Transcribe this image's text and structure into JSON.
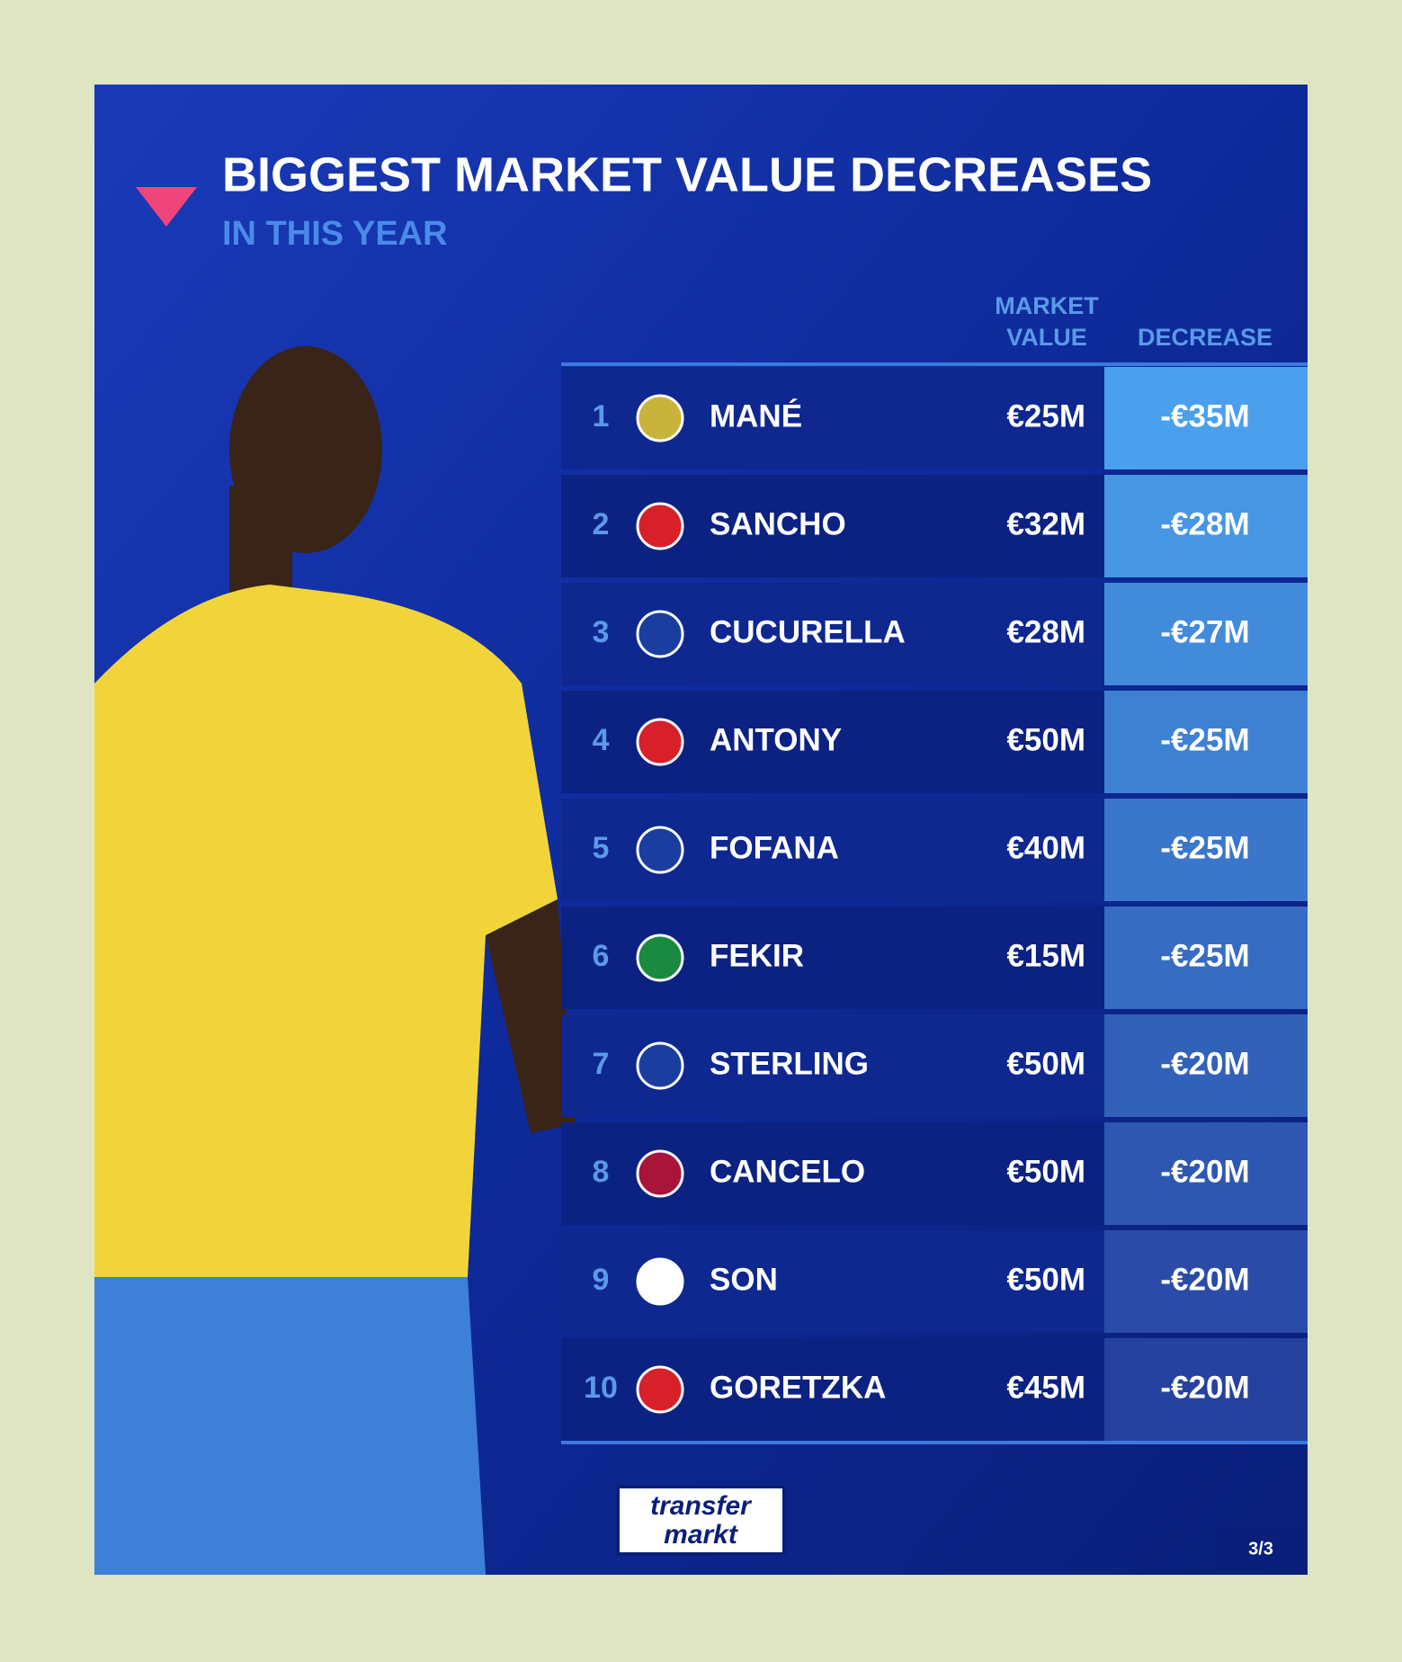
{
  "header": {
    "title": "BIGGEST MARKET VALUE DECREASES",
    "subtitle": "IN THIS YEAR"
  },
  "table": {
    "columns": [
      "MARKET VALUE",
      "DECREASE"
    ],
    "rows": [
      [
        "1",
        "MANÉ",
        "€25M",
        "-€35M"
      ],
      [
        "2",
        "SANCHO",
        "€32M",
        "-€28M"
      ],
      [
        "3",
        "CUCURELLA",
        "€28M",
        "-€27M"
      ],
      [
        "4",
        "ANTONY",
        "€50M",
        "-€25M"
      ],
      [
        "5",
        "FOFANA",
        "€40M",
        "-€25M"
      ],
      [
        "6",
        "FEKIR",
        "€15M",
        "-€25M"
      ],
      [
        "7",
        "STERLING",
        "€50M",
        "-€20M"
      ],
      [
        "8",
        "CANCELO",
        "€50M",
        "-€20M"
      ],
      [
        "9",
        "SON",
        "€50M",
        "-€20M"
      ],
      [
        "10",
        "GORETZKA",
        "€45M",
        "-€20M"
      ]
    ]
  },
  "footer": {
    "logo": [
      "transfer",
      "markt"
    ],
    "page": "3/3"
  }
}
